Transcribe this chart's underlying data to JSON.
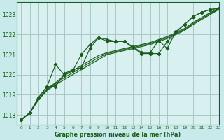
{
  "title": "Graphe pression niveau de la mer (hPa)",
  "bg_color": "#c8eaea",
  "plot_bg_color": "#d8f0f0",
  "grid_color": "#a8c8c8",
  "line_color": "#1a5c1a",
  "xlim": [
    -0.5,
    23
  ],
  "ylim": [
    1017.5,
    1023.6
  ],
  "yticks": [
    1018,
    1019,
    1020,
    1021,
    1022,
    1023
  ],
  "xticks": [
    0,
    1,
    2,
    3,
    4,
    5,
    6,
    7,
    8,
    9,
    10,
    11,
    12,
    13,
    14,
    15,
    16,
    17,
    18,
    19,
    20,
    21,
    22,
    23
  ],
  "smooth_lines": [
    [
      1017.75,
      1018.1,
      1018.75,
      1019.2,
      1019.5,
      1019.75,
      1020.0,
      1020.25,
      1020.5,
      1020.75,
      1021.0,
      1021.1,
      1021.2,
      1021.3,
      1021.4,
      1021.5,
      1021.65,
      1021.8,
      1022.0,
      1022.2,
      1022.5,
      1022.75,
      1023.0,
      1023.25
    ],
    [
      1017.75,
      1018.1,
      1018.75,
      1019.25,
      1019.55,
      1019.85,
      1020.1,
      1020.35,
      1020.6,
      1020.85,
      1021.05,
      1021.15,
      1021.25,
      1021.35,
      1021.45,
      1021.55,
      1021.7,
      1021.85,
      1022.05,
      1022.25,
      1022.55,
      1022.8,
      1023.05,
      1023.28
    ],
    [
      1017.75,
      1018.1,
      1018.75,
      1019.3,
      1019.6,
      1019.95,
      1020.2,
      1020.45,
      1020.7,
      1020.95,
      1021.1,
      1021.2,
      1021.3,
      1021.4,
      1021.5,
      1021.6,
      1021.75,
      1021.9,
      1022.1,
      1022.3,
      1022.6,
      1022.85,
      1023.1,
      1023.3
    ]
  ],
  "jagged_series1": {
    "x": [
      0,
      1,
      2,
      3,
      4,
      5,
      6,
      7,
      8,
      9,
      10,
      11,
      12,
      13,
      14,
      15,
      16,
      17,
      18,
      19,
      20,
      21,
      22,
      23
    ],
    "y": [
      1017.75,
      1018.1,
      1018.85,
      1019.4,
      1020.5,
      1020.0,
      1020.2,
      1021.0,
      1021.5,
      1021.85,
      1021.75,
      1021.65,
      1021.65,
      1021.35,
      1021.05,
      1021.05,
      1021.05,
      1021.65,
      1022.1,
      1022.5,
      1022.9,
      1023.1,
      1023.25,
      1023.3
    ]
  },
  "jagged_series2": {
    "x": [
      0,
      1,
      2,
      3,
      4,
      5,
      6,
      7,
      8,
      9,
      10,
      11,
      12,
      13,
      14,
      15,
      16,
      17,
      18,
      19,
      20,
      21,
      22,
      23
    ],
    "y": [
      1017.75,
      1018.1,
      1018.85,
      1019.4,
      1019.4,
      1020.05,
      1020.25,
      1020.35,
      1021.3,
      1021.85,
      1021.65,
      1021.65,
      1021.65,
      1021.4,
      1021.1,
      1021.1,
      1021.7,
      1021.3,
      1022.15,
      1022.5,
      1022.9,
      1023.1,
      1023.25,
      1023.3
    ]
  }
}
